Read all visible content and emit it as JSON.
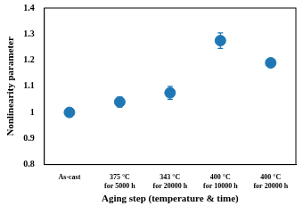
{
  "chart_data": {
    "type": "scatter",
    "x_label": "Aging step (temperature & time)",
    "y_label": "Nonlinearity parameter",
    "categories": [
      "As-cast",
      [
        "375 °C",
        "for 5000 h"
      ],
      [
        "343 °C",
        "for 20000 h"
      ],
      [
        "400 °C",
        "for 10000 h"
      ],
      [
        "400 °C",
        "for 20000 h"
      ]
    ],
    "values": [
      1.0,
      1.04,
      1.075,
      1.275,
      1.19
    ],
    "errors": [
      0,
      0.02,
      0.025,
      0.03,
      0.01
    ],
    "color": "#1f77b4",
    "marker": "circle",
    "ylim": [
      0.8,
      1.4
    ],
    "yticks": [
      0.8,
      0.9,
      1,
      1.1,
      1.2,
      1.3,
      1.4
    ],
    "grid": false
  }
}
